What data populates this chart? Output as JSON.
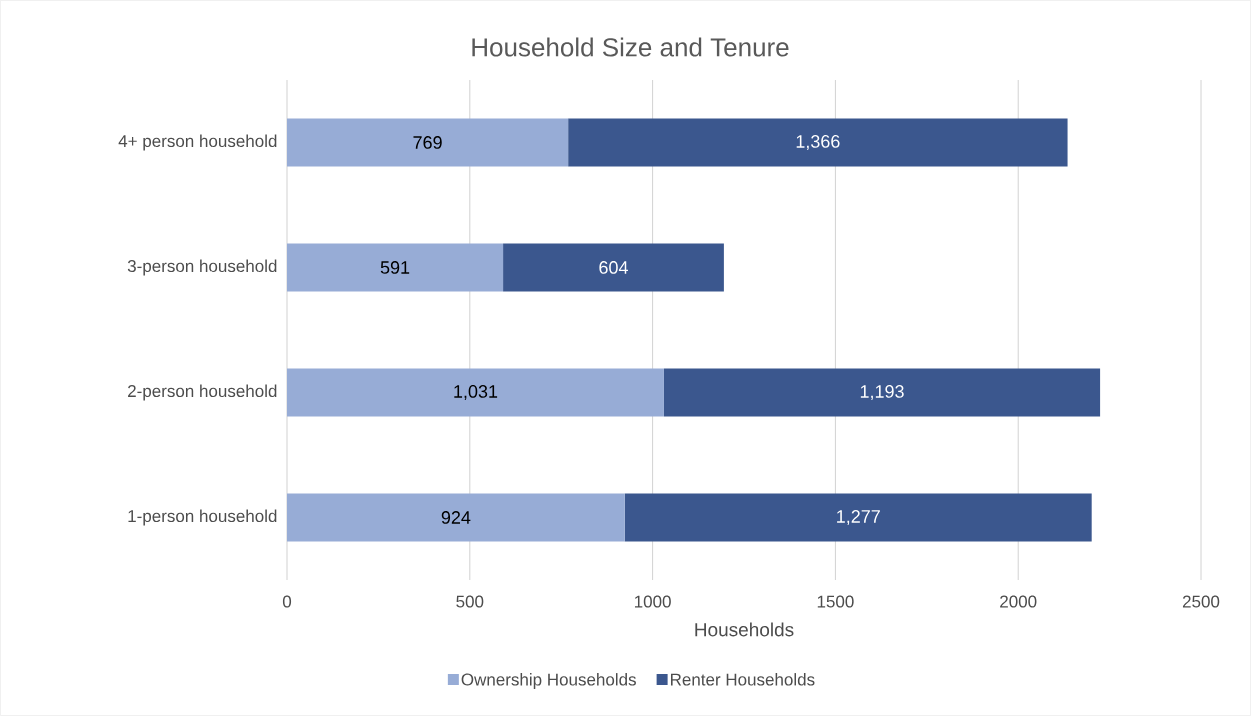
{
  "chart_data": {
    "type": "bar",
    "orientation": "horizontal",
    "stacked": true,
    "title": "Household Size and Tenure",
    "xlabel": "Households",
    "categories": [
      "4+ person household",
      "3-person household",
      "2-person household",
      "1-person household"
    ],
    "series": [
      {
        "name": "Ownership Households",
        "color": "#97acd6",
        "values": [
          769,
          591,
          1031,
          924
        ],
        "value_labels": [
          "769",
          "591",
          "1,031",
          "924"
        ]
      },
      {
        "name": "Renter Households",
        "color": "#3b578e",
        "values": [
          1366,
          604,
          1193,
          1277
        ],
        "value_labels": [
          "1,366",
          "604",
          "1,193",
          "1,277"
        ]
      }
    ],
    "xlim": [
      0,
      2500
    ],
    "xticks": [
      0,
      500,
      1000,
      1500,
      2000,
      2500
    ],
    "grid": "x",
    "legend": "bottom"
  }
}
